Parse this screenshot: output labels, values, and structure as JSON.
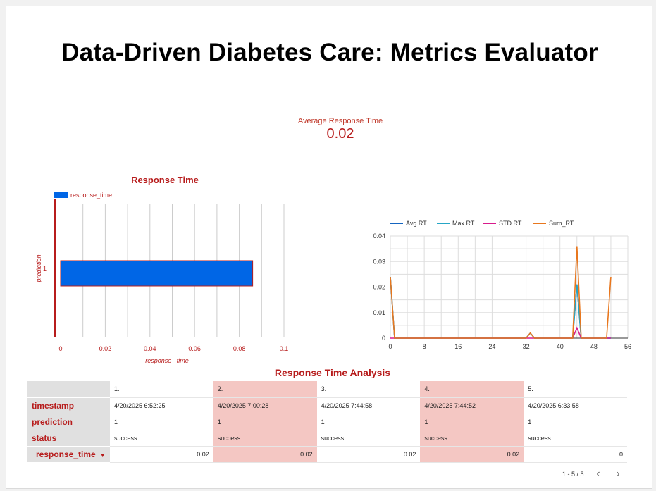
{
  "page": {
    "title": "Data-Driven Diabetes Care: Metrics Evaluator"
  },
  "scorecard": {
    "label": "Average Response Time",
    "value": "0.02"
  },
  "bar_chart": {
    "title": "Response Time",
    "legend_label": "response_time",
    "xlabel": "response_ time",
    "ylabel": "prediction",
    "category_label": "1",
    "bar_color": "#0066e6",
    "accent_color": "#b71c1c",
    "x_ticks": [
      "0",
      "0.02",
      "0.04",
      "0.06",
      "0.08",
      "0.1"
    ]
  },
  "line_chart": {
    "legend": [
      "Avg RT",
      "Max RT",
      "STD RT",
      "Sum_RT"
    ],
    "colors": [
      "#1565c0",
      "#26a6c6",
      "#d81b8c",
      "#e8771e"
    ],
    "y_ticks": [
      "0",
      "0.01",
      "0.02",
      "0.03",
      "0.04"
    ],
    "x_ticks": [
      "0",
      "8",
      "16",
      "24",
      "32",
      "40",
      "48",
      "56"
    ]
  },
  "chart_data": [
    {
      "type": "bar",
      "title": "Response Time",
      "orientation": "horizontal",
      "categories": [
        "1"
      ],
      "series": [
        {
          "name": "response_time",
          "values": [
            0.086
          ]
        }
      ],
      "xlabel": "response_ time",
      "ylabel": "prediction",
      "xlim": [
        0,
        0.1
      ]
    },
    {
      "type": "line",
      "x": [
        0,
        1,
        32,
        33,
        34,
        43,
        44,
        45,
        51,
        52
      ],
      "series": [
        {
          "name": "Avg RT",
          "values": [
            0.024,
            0,
            0,
            0.002,
            0,
            0,
            0.021,
            0,
            0,
            0
          ]
        },
        {
          "name": "Max RT",
          "values": [
            0.024,
            0,
            0,
            0.002,
            0,
            0,
            0.021,
            0,
            0,
            0
          ]
        },
        {
          "name": "STD RT",
          "values": [
            0,
            0,
            0,
            0,
            0,
            0,
            0.004,
            0,
            0,
            0
          ]
        },
        {
          "name": "Sum_RT",
          "values": [
            0.024,
            0,
            0,
            0.002,
            0,
            0,
            0.036,
            0,
            0,
            0.024
          ]
        }
      ],
      "xlim": [
        0,
        56
      ],
      "ylim": [
        0,
        0.04
      ],
      "legend_position": "top"
    }
  ],
  "table": {
    "title": "Response Time Analysis",
    "row_labels": {
      "timestamp": "timestamp",
      "prediction": "prediction",
      "status": "status",
      "response_time": "response_time"
    },
    "sort_indicator": "▼",
    "columns": [
      {
        "index": "1.",
        "timestamp": "4/20/2025 6:52:25",
        "prediction": "1",
        "status": "success",
        "response_time": "0.02"
      },
      {
        "index": "2.",
        "timestamp": "4/20/2025 7:00:28",
        "prediction": "1",
        "status": "success",
        "response_time": "0.02"
      },
      {
        "index": "3.",
        "timestamp": "4/20/2025 7:44:58",
        "prediction": "1",
        "status": "success",
        "response_time": "0.02"
      },
      {
        "index": "4.",
        "timestamp": "4/20/2025 7:44:52",
        "prediction": "1",
        "status": "success",
        "response_time": "0.02"
      },
      {
        "index": "5.",
        "timestamp": "4/20/2025 6:33:58",
        "prediction": "1",
        "status": "success",
        "response_time": "0"
      }
    ],
    "pagination": "1 - 5 / 5",
    "prev_icon": "‹",
    "next_icon": "›"
  }
}
